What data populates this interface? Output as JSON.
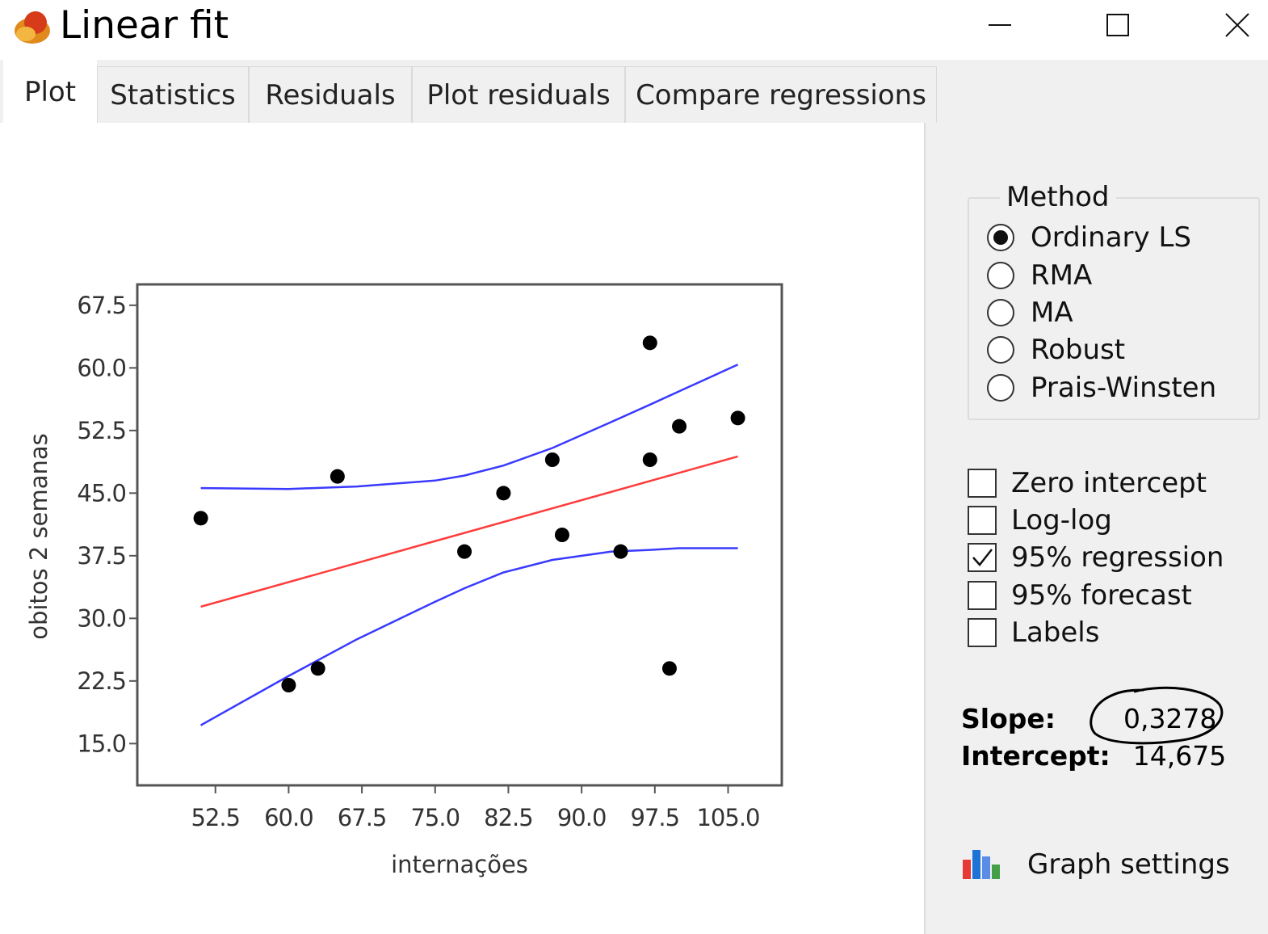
{
  "window": {
    "title": "Linear fit",
    "icon": "app-logo-icon",
    "controls": {
      "minimize": "minimize-icon",
      "maximize": "maximize-icon",
      "close": "close-icon"
    }
  },
  "tabs": [
    {
      "label": "Plot",
      "active": true
    },
    {
      "label": "Statistics",
      "active": false
    },
    {
      "label": "Residuals",
      "active": false
    },
    {
      "label": "Plot residuals",
      "active": false
    },
    {
      "label": "Compare regressions",
      "active": false
    }
  ],
  "method": {
    "legend": "Method",
    "options": [
      {
        "label": "Ordinary LS",
        "selected": true
      },
      {
        "label": "RMA",
        "selected": false
      },
      {
        "label": "MA",
        "selected": false
      },
      {
        "label": "Robust",
        "selected": false
      },
      {
        "label": "Prais-Winsten",
        "selected": false
      }
    ]
  },
  "options": [
    {
      "label": "Zero intercept",
      "checked": false
    },
    {
      "label": "Log-log",
      "checked": false
    },
    {
      "label": "95% regression",
      "checked": true
    },
    {
      "label": "95% forecast",
      "checked": false
    },
    {
      "label": "Labels",
      "checked": false
    }
  ],
  "stats": {
    "slope_label": "Slope:",
    "slope_value": "0,3278",
    "intercept_label": "Intercept:",
    "intercept_value": "14,675"
  },
  "graph_settings": {
    "label": "Graph settings",
    "icon": "bar-chart-icon"
  },
  "colors": {
    "fit_line": "#ff3b3b",
    "confidence_band": "#3a3aff",
    "points": "#000000",
    "panel_bg": "#f0f0f0"
  },
  "chart_data": {
    "type": "scatter",
    "xlabel": "internações",
    "ylabel": "obitos 2 semanas",
    "xlim": [
      44.5,
      110.5
    ],
    "ylim": [
      10.0,
      70.0
    ],
    "x_ticks": [
      "52.5",
      "60.0",
      "67.5",
      "75.0",
      "82.5",
      "90.0",
      "97.5",
      "105.0"
    ],
    "x_tick_values": [
      52.5,
      60.0,
      67.5,
      75.0,
      82.5,
      90.0,
      97.5,
      105.0
    ],
    "y_ticks": [
      "15.0",
      "22.5",
      "30.0",
      "37.5",
      "45.0",
      "52.5",
      "60.0",
      "67.5"
    ],
    "y_tick_values": [
      15.0,
      22.5,
      30.0,
      37.5,
      45.0,
      52.5,
      60.0,
      67.5
    ],
    "points": {
      "x": [
        51,
        60,
        63,
        65,
        78,
        82,
        87,
        88,
        94,
        97,
        97,
        99,
        100,
        106
      ],
      "y": [
        42,
        22,
        24,
        47,
        38,
        45,
        49,
        40,
        38,
        63,
        49,
        24,
        53,
        54
      ]
    },
    "fit_line": {
      "x": [
        51,
        106
      ],
      "y": [
        31.4,
        49.4
      ]
    },
    "upper_band": {
      "x": [
        51,
        60,
        67,
        75,
        78,
        82,
        87,
        93,
        97,
        100,
        106
      ],
      "y": [
        45.6,
        45.5,
        45.8,
        46.5,
        47.1,
        48.3,
        50.4,
        53.5,
        55.6,
        57.2,
        60.4
      ]
    },
    "lower_band": {
      "x": [
        51,
        60,
        67,
        75,
        78,
        82,
        87,
        93,
        97,
        100,
        106
      ],
      "y": [
        17.2,
        23.1,
        27.5,
        32.0,
        33.6,
        35.5,
        37.0,
        38.0,
        38.2,
        38.4,
        38.4
      ]
    }
  }
}
